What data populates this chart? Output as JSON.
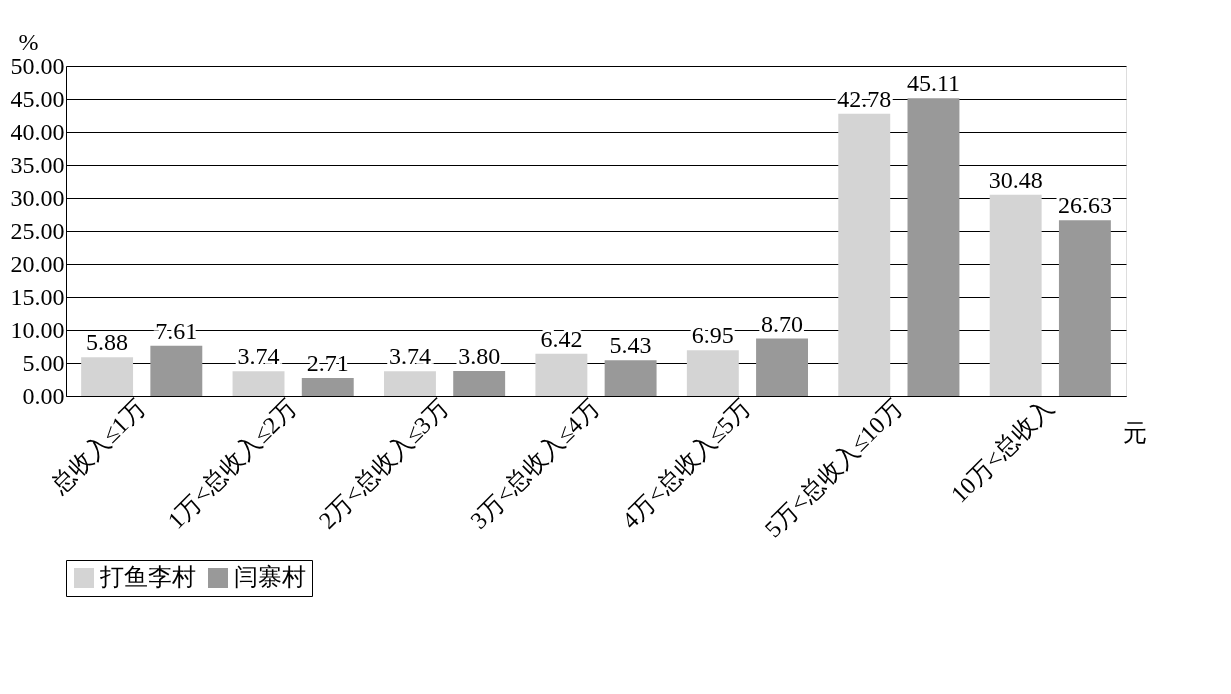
{
  "chart_data": {
    "type": "bar",
    "categories": [
      "总收入≤1万",
      "1万<总收入≤2万",
      "2万<总收入≤3万",
      "3万<总收入≤4万",
      "4万<总收入≤5万",
      "5万<总收入≤10万",
      "10万<总收入"
    ],
    "series": [
      {
        "name": "打鱼李村",
        "color": "#d4d4d4",
        "values": [
          5.88,
          3.74,
          3.74,
          6.42,
          6.95,
          42.78,
          30.48
        ],
        "value_labels": [
          "5.88",
          "3.74",
          "3.74",
          "6.42",
          "6.95",
          "42.78",
          "30.48"
        ]
      },
      {
        "name": "闫寨村",
        "color": "#999999",
        "values": [
          7.61,
          2.71,
          3.8,
          5.43,
          8.7,
          45.11,
          26.63
        ],
        "value_labels": [
          "7.61",
          "2.71",
          "3.80",
          "5.43",
          "8.70",
          "45.11",
          "26.63"
        ]
      }
    ],
    "xlabel": "元",
    "ylabel": "%",
    "ylim": [
      0,
      50
    ],
    "yticks": [
      {
        "value": 0,
        "label": "0.00"
      },
      {
        "value": 5,
        "label": "5.00"
      },
      {
        "value": 10,
        "label": "10.00"
      },
      {
        "value": 15,
        "label": "15.00"
      },
      {
        "value": 20,
        "label": "20.00"
      },
      {
        "value": 25,
        "label": "25.00"
      },
      {
        "value": 30,
        "label": "30.00"
      },
      {
        "value": 35,
        "label": "35.00"
      },
      {
        "value": 40,
        "label": "40.00"
      },
      {
        "value": 45,
        "label": "45.00"
      },
      {
        "value": 50,
        "label": "50.00"
      }
    ],
    "grid": "y",
    "legend": "bottom"
  }
}
